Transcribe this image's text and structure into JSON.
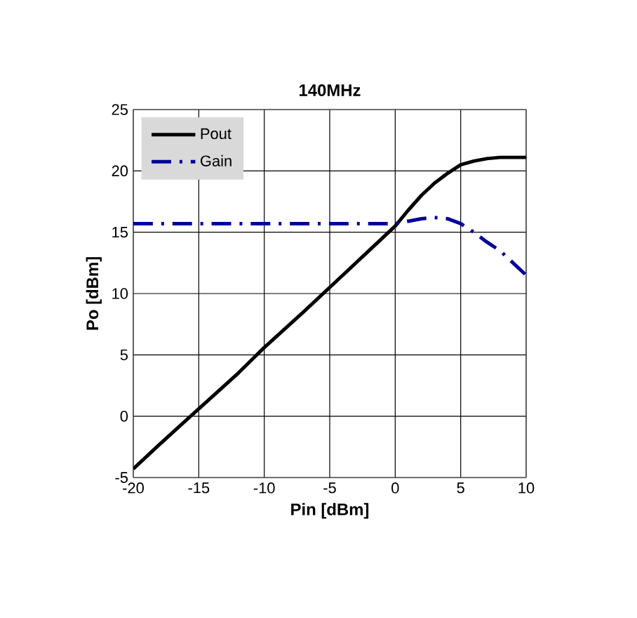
{
  "chart_data": {
    "type": "line",
    "title": "140MHz",
    "xlabel": "Pin [dBm]",
    "ylabel": "Po [dBm]",
    "xlim": [
      -20,
      10
    ],
    "xticks": [
      -20,
      -15,
      -10,
      -5,
      0,
      5,
      10
    ],
    "ylim": [
      -5,
      25
    ],
    "yticks": [
      -5,
      0,
      5,
      10,
      15,
      20,
      25
    ],
    "grid": true,
    "legend": "top left",
    "marker": "none",
    "series": [
      {
        "name": "Pout",
        "color": "#000000",
        "line_style": "solid",
        "x": [
          -20,
          -18,
          -15,
          -12,
          -10,
          -7,
          -5,
          -2,
          0,
          1,
          2,
          3,
          4,
          5,
          6,
          7,
          8,
          10
        ],
        "values": [
          -4.3,
          -2.3,
          0.6,
          3.5,
          5.6,
          8.5,
          10.5,
          13.5,
          15.5,
          16.8,
          18,
          19,
          19.8,
          20.5,
          20.8,
          21,
          21.1,
          21.1
        ]
      },
      {
        "name": "Gain",
        "color": "#000099",
        "line_style": "dashdot",
        "x": [
          -20,
          -15,
          -10,
          -5,
          0,
          1,
          2,
          3,
          4,
          5,
          6,
          7,
          8,
          9,
          10
        ],
        "values": [
          15.7,
          15.7,
          15.7,
          15.7,
          15.7,
          15.9,
          16.1,
          16.2,
          16.1,
          15.7,
          15,
          14.2,
          13.5,
          12.5,
          11.5
        ]
      }
    ]
  }
}
